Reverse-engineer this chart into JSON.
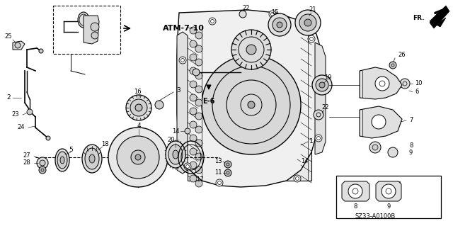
{
  "bg_color": "#ffffff",
  "diagram_ref": "SZ33-A0100B",
  "ref_label": "ATM-7-10",
  "sub_ref": "E-6",
  "direction_label": "FR.",
  "fig_width": 6.4,
  "fig_height": 3.19,
  "dpi": 100
}
